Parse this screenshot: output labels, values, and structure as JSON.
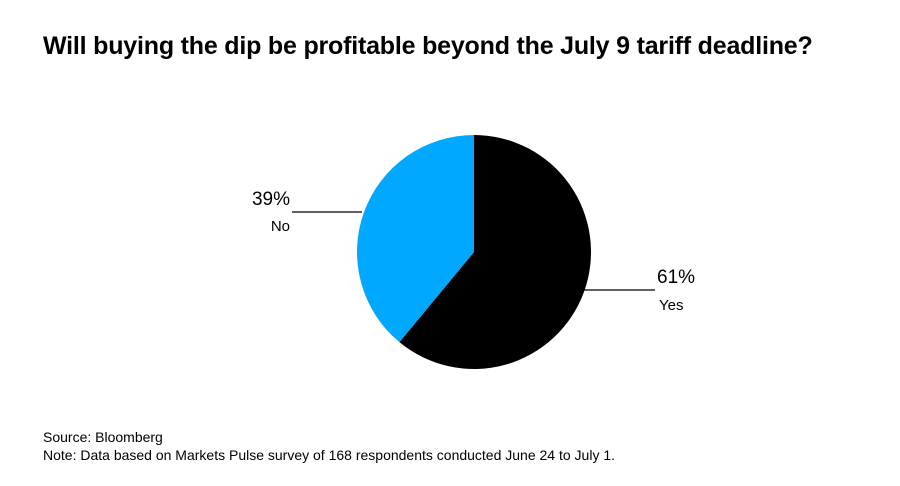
{
  "chart_data": {
    "type": "pie",
    "title": "Will buying the dip be profitable beyond the July 9 tariff deadline?",
    "slices": [
      {
        "label": "Yes",
        "value": 61,
        "value_label": "61%",
        "color": "#000000"
      },
      {
        "label": "No",
        "value": 39,
        "value_label": "39%",
        "color": "#00a8ff"
      }
    ],
    "start": "12 o'clock",
    "direction": "clockwise"
  },
  "footer": {
    "source": "Source: Bloomberg",
    "note": "Note: Data based on Markets Pulse survey of 168 respondents conducted June 24 to July 1."
  }
}
